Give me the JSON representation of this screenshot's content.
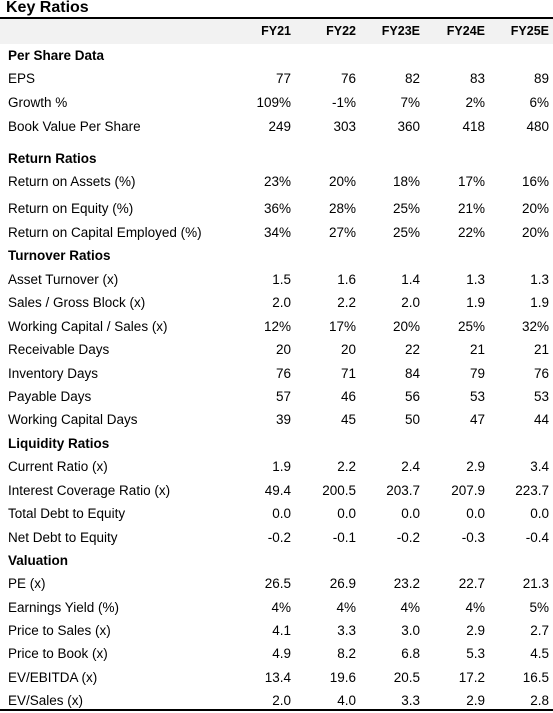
{
  "title": "Key Ratios",
  "columns": [
    "FY21",
    "FY22",
    "FY23E",
    "FY24E",
    "FY25E"
  ],
  "rows": [
    {
      "label": "Per Share Data",
      "section": true,
      "values": []
    },
    {
      "label": "EPS",
      "values": [
        "77",
        "76",
        "82",
        "83",
        "89"
      ]
    },
    {
      "label": "Growth %",
      "values": [
        "109%",
        "-1%",
        "7%",
        "2%",
        "6%"
      ]
    },
    {
      "label": "Book Value Per Share",
      "values": [
        "249",
        "303",
        "360",
        "418",
        "480"
      ]
    },
    {
      "label": "Return Ratios",
      "section": true,
      "values": []
    },
    {
      "label": "Return on Assets (%)",
      "values": [
        "23%",
        "20%",
        "18%",
        "17%",
        "16%"
      ]
    },
    {
      "label": "Return on Equity (%)",
      "values": [
        "36%",
        "28%",
        "25%",
        "21%",
        "20%"
      ]
    },
    {
      "label": "Return on Capital Employed (%)",
      "values": [
        "34%",
        "27%",
        "25%",
        "22%",
        "20%"
      ]
    },
    {
      "label": "Turnover Ratios",
      "section": true,
      "values": []
    },
    {
      "label": "Asset Turnover (x)",
      "values": [
        "1.5",
        "1.6",
        "1.4",
        "1.3",
        "1.3"
      ]
    },
    {
      "label": "Sales / Gross Block (x)",
      "values": [
        "2.0",
        "2.2",
        "2.0",
        "1.9",
        "1.9"
      ]
    },
    {
      "label": "Working Capital / Sales (x)",
      "values": [
        "12%",
        "17%",
        "20%",
        "25%",
        "32%"
      ]
    },
    {
      "label": "Receivable Days",
      "values": [
        "20",
        "20",
        "22",
        "21",
        "21"
      ]
    },
    {
      "label": "Inventory Days",
      "values": [
        "76",
        "71",
        "84",
        "79",
        "76"
      ]
    },
    {
      "label": "Payable Days",
      "values": [
        "57",
        "46",
        "56",
        "53",
        "53"
      ]
    },
    {
      "label": "Working Capital Days",
      "values": [
        "39",
        "45",
        "50",
        "47",
        "44"
      ]
    },
    {
      "label": "Liquidity Ratios",
      "section": true,
      "values": []
    },
    {
      "label": "Current Ratio (x)",
      "values": [
        "1.9",
        "2.2",
        "2.4",
        "2.9",
        "3.4"
      ]
    },
    {
      "label": "Interest Coverage Ratio (x)",
      "values": [
        "49.4",
        "200.5",
        "203.7",
        "207.9",
        "223.7"
      ]
    },
    {
      "label": "Total Debt to Equity",
      "values": [
        "0.0",
        "0.0",
        "0.0",
        "0.0",
        "0.0"
      ]
    },
    {
      "label": "Net Debt to Equity",
      "values": [
        "-0.2",
        "-0.1",
        "-0.2",
        "-0.3",
        "-0.4"
      ]
    },
    {
      "label": "Valuation",
      "section": true,
      "values": []
    },
    {
      "label": "PE (x)",
      "values": [
        "26.5",
        "26.9",
        "23.2",
        "22.7",
        "21.3"
      ]
    },
    {
      "label": "Earnings Yield (%)",
      "values": [
        "4%",
        "4%",
        "4%",
        "4%",
        "5%"
      ]
    },
    {
      "label": "Price to Sales (x)",
      "values": [
        "4.1",
        "3.3",
        "3.0",
        "2.9",
        "2.7"
      ]
    },
    {
      "label": "Price to Book (x)",
      "values": [
        "4.9",
        "8.2",
        "6.8",
        "5.3",
        "4.5"
      ]
    },
    {
      "label": "EV/EBITDA (x)",
      "values": [
        "13.4",
        "19.6",
        "20.5",
        "17.2",
        "16.5"
      ]
    },
    {
      "label": "EV/Sales (x)",
      "values": [
        "2.0",
        "4.0",
        "3.3",
        "2.9",
        "2.8"
      ]
    }
  ]
}
